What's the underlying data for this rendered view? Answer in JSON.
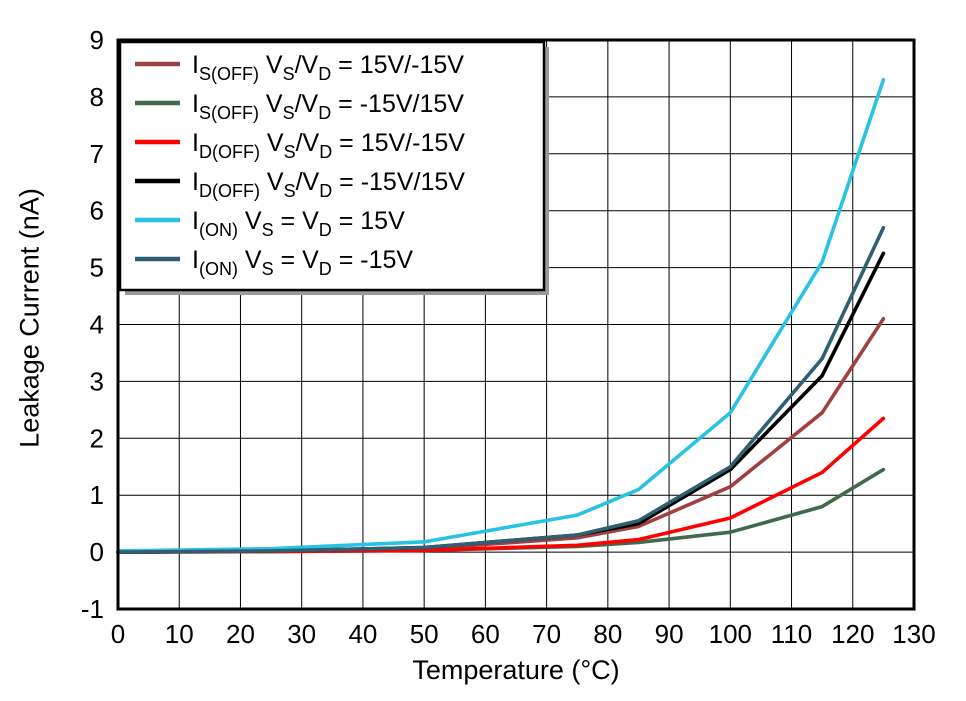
{
  "chart_data": {
    "type": "line",
    "title": "",
    "xlabel": "Temperature (°C)",
    "ylabel": "Leakage Current (nA)",
    "xlim": [
      0,
      130
    ],
    "ylim": [
      -1,
      9
    ],
    "xticks": [
      0,
      10,
      20,
      30,
      40,
      50,
      60,
      70,
      80,
      90,
      100,
      110,
      120,
      130
    ],
    "yticks": [
      -1,
      0,
      1,
      2,
      3,
      4,
      5,
      6,
      7,
      8,
      9
    ],
    "grid": true,
    "grid_color": "#000000",
    "axis_color": "#000000",
    "legend_position": "top-left",
    "x": [
      0,
      25,
      50,
      75,
      85,
      100,
      115,
      125
    ],
    "series": [
      {
        "id": "is-off-15v-neg15v",
        "name": "IS(OFF) VS/VD = 15V/-15V",
        "color": "#a04040",
        "values": [
          0.0,
          0.02,
          0.06,
          0.25,
          0.45,
          1.15,
          2.45,
          4.1
        ],
        "label_parts": [
          {
            "t": "I"
          },
          {
            "s": "S(OFF)"
          },
          {
            "t": " V"
          },
          {
            "s": "S"
          },
          {
            "t": "/V"
          },
          {
            "s": "D"
          },
          {
            "t": " = 15V/-15V"
          }
        ]
      },
      {
        "id": "is-off-neg15v-15v",
        "name": "IS(OFF) VS/VD = -15V/15V",
        "color": "#3f6b4a",
        "values": [
          0.0,
          0.01,
          0.03,
          0.1,
          0.17,
          0.35,
          0.8,
          1.45
        ],
        "label_parts": [
          {
            "t": "I"
          },
          {
            "s": "S(OFF)"
          },
          {
            "t": " V"
          },
          {
            "s": "S"
          },
          {
            "t": "/V"
          },
          {
            "s": "D"
          },
          {
            "t": " = -15V/15V"
          }
        ]
      },
      {
        "id": "id-off-15v-neg15v",
        "name": "ID(OFF) VS/VD = 15V/-15V",
        "color": "#ff0000",
        "values": [
          0.0,
          0.01,
          0.03,
          0.12,
          0.22,
          0.6,
          1.4,
          2.35
        ],
        "label_parts": [
          {
            "t": "I"
          },
          {
            "s": "D(OFF)"
          },
          {
            "t": " V"
          },
          {
            "s": "S"
          },
          {
            "t": "/V"
          },
          {
            "s": "D"
          },
          {
            "t": " = 15V/-15V"
          }
        ]
      },
      {
        "id": "id-off-neg15v-15v",
        "name": "ID(OFF) VS/VD = -15V/15V",
        "color": "#000000",
        "values": [
          0.0,
          0.02,
          0.08,
          0.3,
          0.5,
          1.45,
          3.1,
          5.25
        ],
        "label_parts": [
          {
            "t": "I"
          },
          {
            "s": "D(OFF)"
          },
          {
            "t": " V"
          },
          {
            "s": "S"
          },
          {
            "t": "/V"
          },
          {
            "s": "D"
          },
          {
            "t": " = -15V/15V"
          }
        ]
      },
      {
        "id": "i-on-15v",
        "name": "I(ON) VS = VD = 15V",
        "color": "#2ac2e4",
        "values": [
          0.02,
          0.06,
          0.18,
          0.65,
          1.1,
          2.45,
          5.1,
          8.3
        ],
        "label_parts": [
          {
            "t": "I"
          },
          {
            "s": "(ON)"
          },
          {
            "t": " V"
          },
          {
            "s": "S"
          },
          {
            "t": " = V"
          },
          {
            "s": "D"
          },
          {
            "t": " = 15V"
          }
        ]
      },
      {
        "id": "i-on-neg15v",
        "name": "I(ON) VS = VD = -15V",
        "color": "#2e5f73",
        "values": [
          0.0,
          0.02,
          0.08,
          0.3,
          0.55,
          1.5,
          3.4,
          5.7
        ],
        "label_parts": [
          {
            "t": "I"
          },
          {
            "s": "(ON)"
          },
          {
            "t": " V"
          },
          {
            "s": "S"
          },
          {
            "t": " = V"
          },
          {
            "s": "D"
          },
          {
            "t": " = -15V"
          }
        ]
      }
    ]
  }
}
